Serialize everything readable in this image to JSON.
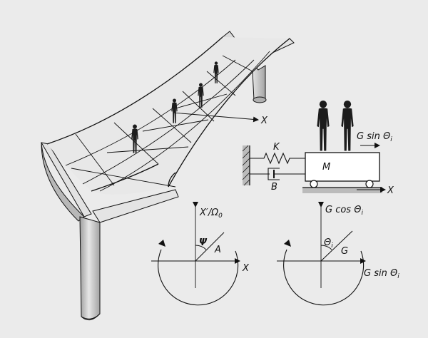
{
  "bridge": {
    "axis_label": "X"
  },
  "model": {
    "spring_label": "K",
    "damper_label": "B",
    "mass_label": "M",
    "axis_label": "X",
    "force_label": "G sin Θ",
    "force_sub": "i"
  },
  "phase_left": {
    "y_label": "X′/Ω",
    "y_sub": "0",
    "x_label": "X",
    "angle_label": "Ψ",
    "radius_label": "A"
  },
  "phase_right": {
    "y_label": "G cos Θ",
    "y_sub": "i",
    "x_label": "G sin Θ",
    "x_sub": "i",
    "angle_label": "Θ",
    "angle_sub": "i",
    "radius_label": "G"
  },
  "colors": {
    "background": "#ebebeb",
    "line": "#111111",
    "pylon_light": "#e3e3e3",
    "pylon_shade": "#a9a9a9",
    "figure": "#1c1c1c"
  }
}
